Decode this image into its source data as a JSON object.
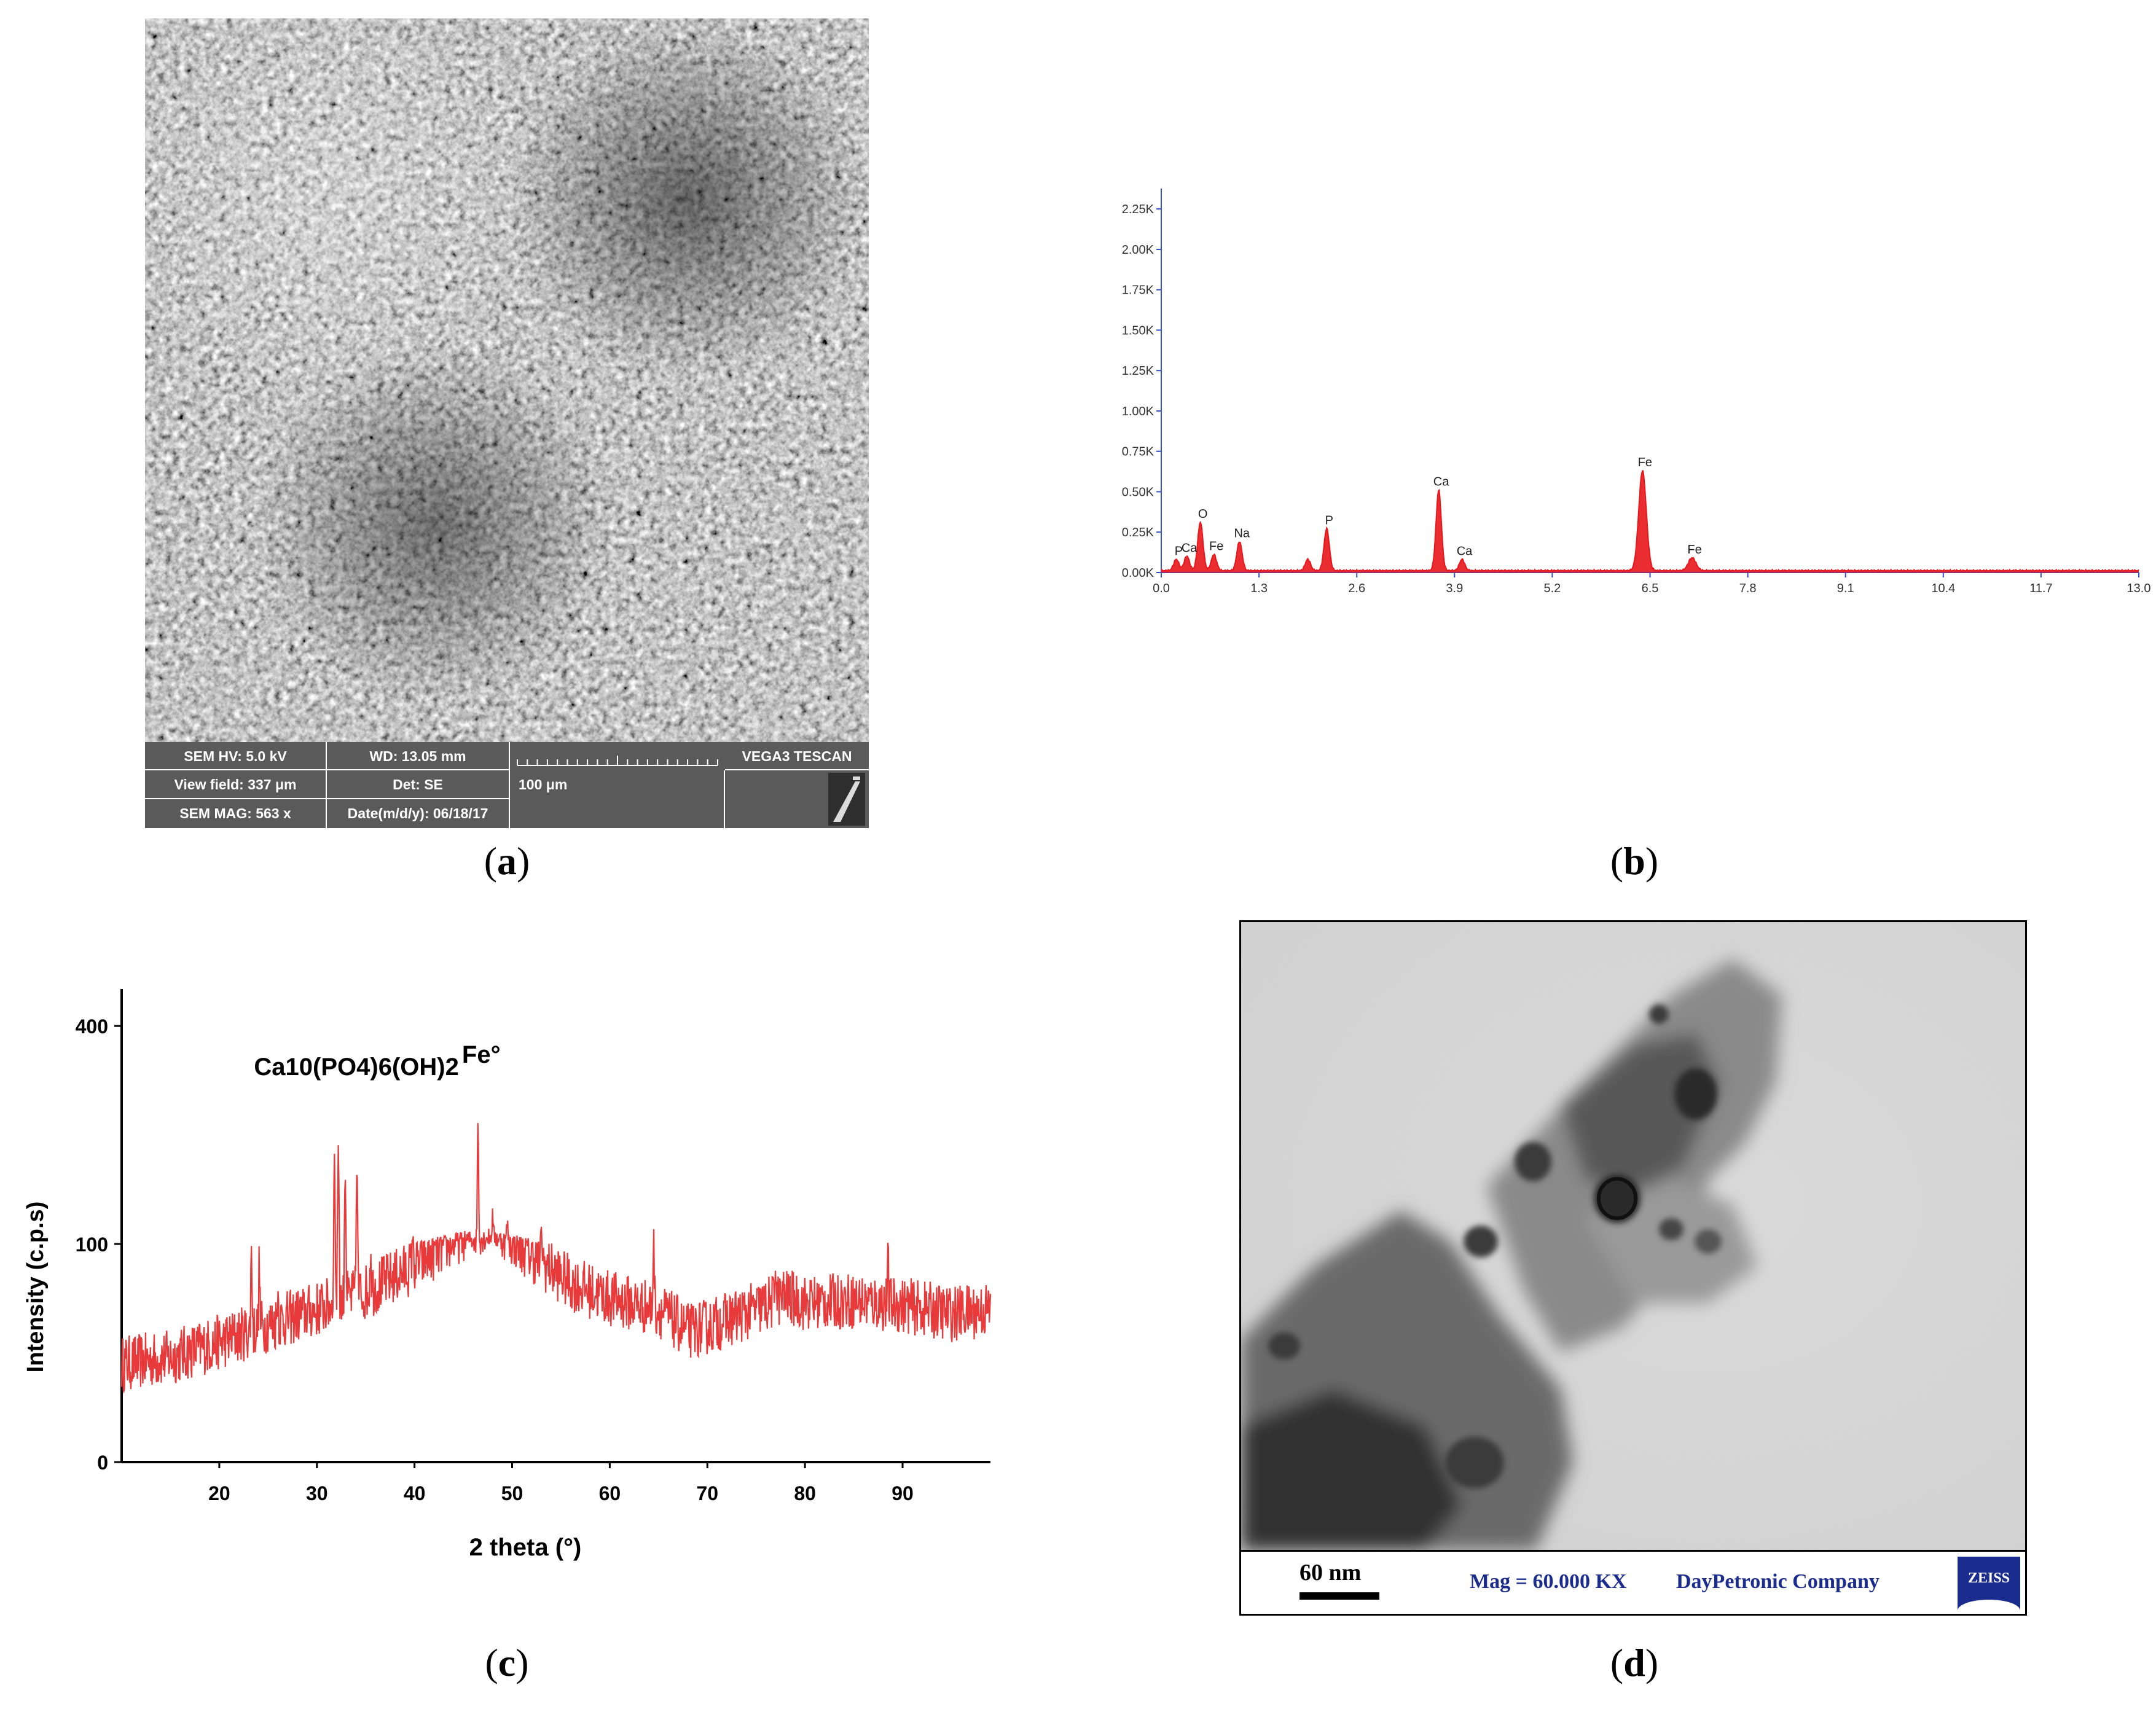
{
  "captions": {
    "a": "a",
    "b": "b",
    "c": "c",
    "d": "d"
  },
  "sem": {
    "hv": "SEM HV: 5.0 kV",
    "wd": "WD: 13.05 mm",
    "brand": "VEGA3 TESCAN",
    "view_field": "View field: 337 μm",
    "det": "Det: SE",
    "scale": "100 μm",
    "mag": "SEM MAG: 563 x",
    "date": "Date(m/d/y): 06/18/17"
  },
  "tem": {
    "scale": "60 nm",
    "mag": "Mag = 60.000 KX",
    "company": "DayPetronic Company",
    "logo": "ZEISS"
  },
  "chart_data": [
    {
      "panel": "b",
      "type": "line",
      "x_ticks": [
        "0.0",
        "1.3",
        "2.6",
        "3.9",
        "5.2",
        "6.5",
        "7.8",
        "9.1",
        "10.4",
        "11.7",
        "13.0"
      ],
      "y_ticks": [
        "0.00K",
        "0.25K",
        "0.50K",
        "0.75K",
        "1.00K",
        "1.25K",
        "1.50K",
        "1.75K",
        "2.00K",
        "2.25K"
      ],
      "xlim": [
        0,
        13.0
      ],
      "ylim": [
        0,
        2.3
      ],
      "color": "#e8161b",
      "peaks": [
        {
          "label": "P",
          "x": 0.2,
          "y": 0.07,
          "label_offset": 0.0
        },
        {
          "label": "Ca",
          "x": 0.34,
          "y": 0.09,
          "label_offset": 0.1
        },
        {
          "label": "O",
          "x": 0.52,
          "y": 0.3
        },
        {
          "label": "Fe",
          "x": 0.7,
          "y": 0.1
        },
        {
          "label": "Na",
          "x": 1.04,
          "y": 0.18
        },
        {
          "label": "",
          "x": 1.95,
          "y": 0.07
        },
        {
          "label": "P",
          "x": 2.2,
          "y": 0.26
        },
        {
          "label": "Ca",
          "x": 3.69,
          "y": 0.5
        },
        {
          "label": "Ca",
          "x": 4.0,
          "y": 0.07
        },
        {
          "label": "Fe",
          "x": 6.4,
          "y": 0.62
        },
        {
          "label": "Fe",
          "x": 7.06,
          "y": 0.08
        }
      ]
    },
    {
      "panel": "c",
      "type": "line",
      "xlabel": "2 theta (°)",
      "ylabel": "Intensity (c.p.s)",
      "x_ticks": [
        20,
        30,
        40,
        50,
        60,
        70,
        80,
        90
      ],
      "y_ticks": [
        0,
        100,
        400
      ],
      "xlim": [
        10,
        99
      ],
      "color": "#e83a3a",
      "annotations": [
        {
          "text": "Ca10(PO4)6(OH)2",
          "x": 33
        },
        {
          "text": "Fe°",
          "x": 46.5
        }
      ],
      "baseline": [
        [
          10,
          45
        ],
        [
          15,
          48
        ],
        [
          20,
          55
        ],
        [
          25,
          63
        ],
        [
          30,
          70
        ],
        [
          35,
          78
        ],
        [
          40,
          90
        ],
        [
          45,
          105
        ],
        [
          48,
          110
        ],
        [
          52,
          95
        ],
        [
          56,
          82
        ],
        [
          60,
          75
        ],
        [
          65,
          70
        ],
        [
          68,
          60
        ],
        [
          70,
          62
        ],
        [
          75,
          70
        ],
        [
          78,
          76
        ],
        [
          80,
          73
        ],
        [
          85,
          74
        ],
        [
          90,
          72
        ],
        [
          95,
          68
        ],
        [
          99,
          70
        ]
      ],
      "peaks": [
        [
          23.3,
          100
        ],
        [
          24.1,
          90
        ],
        [
          26.0,
          80
        ],
        [
          31.8,
          220
        ],
        [
          32.2,
          240
        ],
        [
          32.9,
          200
        ],
        [
          34.1,
          210
        ],
        [
          35.5,
          100
        ],
        [
          39.8,
          110
        ],
        [
          46.5,
          275
        ],
        [
          48.0,
          140
        ],
        [
          49.5,
          130
        ],
        [
          53.0,
          120
        ],
        [
          64.5,
          110
        ],
        [
          77.0,
          95
        ],
        [
          88.5,
          90
        ]
      ]
    }
  ]
}
